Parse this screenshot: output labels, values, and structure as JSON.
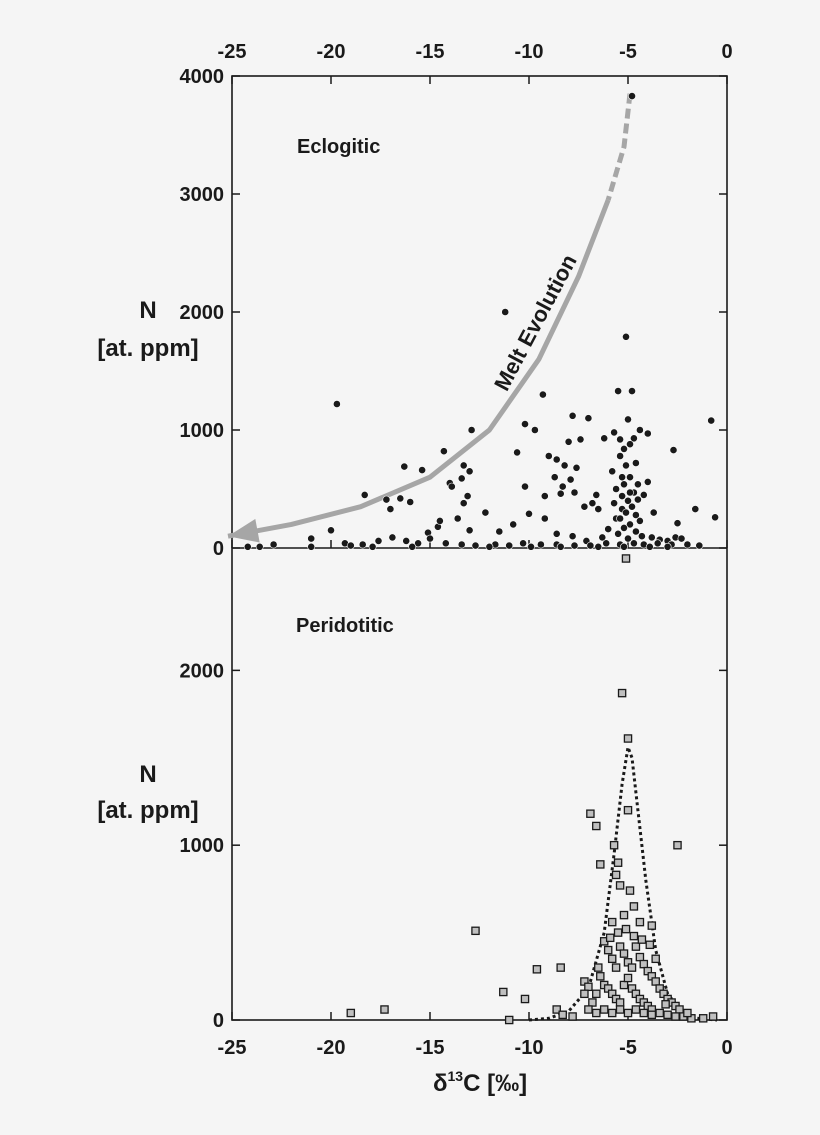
{
  "chart_data": [
    {
      "type": "scatter",
      "panel": "Eclogitic",
      "label": "Eclogitic",
      "xlim": [
        -25,
        0
      ],
      "ylim": [
        0,
        4000
      ],
      "x_ticks": [
        "-25",
        "-20",
        "-15",
        "-10",
        "-5",
        "0"
      ],
      "y_ticks": [
        "0",
        "1000",
        "2000",
        "3000",
        "4000"
      ],
      "ylabel_line1": "N",
      "ylabel_line2": "[at. ppm]",
      "annotation": "Melt Evolution",
      "marker": "filled-circle",
      "marker_color": "#1a1a1a",
      "arrow_color": "#a6a6a6",
      "arrow_path": [
        [
          -4.9,
          3850
        ],
        [
          -5.2,
          3400
        ],
        [
          -6.0,
          2950
        ],
        [
          -7.5,
          2300
        ],
        [
          -9.5,
          1600
        ],
        [
          -12.0,
          1000
        ],
        [
          -15.0,
          600
        ],
        [
          -18.5,
          350
        ],
        [
          -22.0,
          200
        ],
        [
          -25.2,
          100
        ]
      ],
      "points": [
        [
          -4.8,
          3830
        ],
        [
          -11.2,
          2000
        ],
        [
          -19.7,
          1220
        ],
        [
          -5.1,
          1790
        ],
        [
          -5.5,
          1330
        ],
        [
          -4.8,
          1330
        ],
        [
          -9.3,
          1300
        ],
        [
          -0.8,
          1080
        ],
        [
          -7.8,
          1120
        ],
        [
          -7.0,
          1100
        ],
        [
          -5.0,
          1090
        ],
        [
          -4.4,
          1000
        ],
        [
          -4.0,
          970
        ],
        [
          -5.7,
          980
        ],
        [
          -5.4,
          920
        ],
        [
          -6.2,
          930
        ],
        [
          -4.7,
          930
        ],
        [
          -4.9,
          880
        ],
        [
          -5.2,
          840
        ],
        [
          -2.7,
          830
        ],
        [
          -7.4,
          920
        ],
        [
          -8.0,
          900
        ],
        [
          -9.7,
          1000
        ],
        [
          -10.2,
          1050
        ],
        [
          -10.6,
          810
        ],
        [
          -9.0,
          780
        ],
        [
          -8.6,
          750
        ],
        [
          -8.2,
          700
        ],
        [
          -7.6,
          680
        ],
        [
          -8.7,
          600
        ],
        [
          -7.9,
          580
        ],
        [
          -8.3,
          520
        ],
        [
          -7.7,
          470
        ],
        [
          -8.4,
          460
        ],
        [
          -9.2,
          440
        ],
        [
          -10.2,
          520
        ],
        [
          -12.9,
          1000
        ],
        [
          -14.3,
          820
        ],
        [
          -13.3,
          700
        ],
        [
          -13.0,
          650
        ],
        [
          -16.3,
          690
        ],
        [
          -15.4,
          660
        ],
        [
          -13.4,
          590
        ],
        [
          -14.0,
          550
        ],
        [
          -13.9,
          520
        ],
        [
          -13.1,
          440
        ],
        [
          -13.3,
          380
        ],
        [
          -18.3,
          450
        ],
        [
          -17.2,
          410
        ],
        [
          -16.5,
          420
        ],
        [
          -16.0,
          390
        ],
        [
          -17.0,
          330
        ],
        [
          -14.6,
          180
        ],
        [
          -15.1,
          130
        ],
        [
          -14.5,
          230
        ],
        [
          -13.6,
          250
        ],
        [
          -13.0,
          150
        ],
        [
          -12.2,
          300
        ],
        [
          -11.5,
          140
        ],
        [
          -10.8,
          200
        ],
        [
          -10.0,
          290
        ],
        [
          -9.2,
          250
        ],
        [
          -8.6,
          120
        ],
        [
          -7.8,
          100
        ],
        [
          -7.1,
          60
        ],
        [
          -6.3,
          90
        ],
        [
          -6.0,
          160
        ],
        [
          -5.6,
          250
        ],
        [
          -5.3,
          330
        ],
        [
          -5.0,
          400
        ],
        [
          -4.7,
          470
        ],
        [
          -4.5,
          540
        ],
        [
          -5.3,
          600
        ],
        [
          -5.8,
          650
        ],
        [
          -5.1,
          700
        ],
        [
          -4.6,
          720
        ],
        [
          -5.4,
          780
        ],
        [
          -4.9,
          600
        ],
        [
          -5.2,
          540
        ],
        [
          -5.6,
          500
        ],
        [
          -4.9,
          470
        ],
        [
          -5.3,
          440
        ],
        [
          -4.5,
          410
        ],
        [
          -5.7,
          380
        ],
        [
          -4.8,
          350
        ],
        [
          -5.1,
          300
        ],
        [
          -4.6,
          280
        ],
        [
          -5.4,
          250
        ],
        [
          -4.4,
          230
        ],
        [
          -4.9,
          200
        ],
        [
          -5.2,
          170
        ],
        [
          -4.6,
          140
        ],
        [
          -5.5,
          120
        ],
        [
          -4.3,
          100
        ],
        [
          -5.0,
          80
        ],
        [
          -3.8,
          90
        ],
        [
          -3.4,
          70
        ],
        [
          -3.0,
          60
        ],
        [
          -2.6,
          90
        ],
        [
          -2.3,
          80
        ],
        [
          -1.6,
          330
        ],
        [
          -0.6,
          260
        ],
        [
          -2.5,
          210
        ],
        [
          -3.7,
          300
        ],
        [
          -4.0,
          560
        ],
        [
          -4.2,
          450
        ],
        [
          -6.6,
          450
        ],
        [
          -6.8,
          380
        ],
        [
          -7.2,
          350
        ],
        [
          -6.5,
          330
        ],
        [
          -20.0,
          150
        ],
        [
          -21.0,
          80
        ],
        [
          -19.3,
          40
        ],
        [
          -18.4,
          30
        ],
        [
          -17.6,
          60
        ],
        [
          -16.9,
          90
        ],
        [
          -16.2,
          60
        ],
        [
          -15.6,
          40
        ],
        [
          -15.0,
          80
        ],
        [
          -14.2,
          40
        ],
        [
          -13.4,
          30
        ],
        [
          -12.7,
          20
        ],
        [
          -11.7,
          30
        ],
        [
          -11.0,
          20
        ],
        [
          -10.3,
          40
        ],
        [
          -9.4,
          30
        ],
        [
          -8.6,
          30
        ],
        [
          -7.7,
          20
        ],
        [
          -6.9,
          20
        ],
        [
          -6.1,
          40
        ],
        [
          -5.4,
          30
        ],
        [
          -4.7,
          40
        ],
        [
          -4.2,
          30
        ],
        [
          -3.5,
          40
        ],
        [
          -2.8,
          30
        ],
        [
          -2.0,
          30
        ],
        [
          -1.4,
          20
        ],
        [
          -22.9,
          30
        ],
        [
          -23.6,
          10
        ],
        [
          -24.2,
          10
        ],
        [
          -21.0,
          10
        ],
        [
          -19.0,
          20
        ],
        [
          -17.9,
          10
        ],
        [
          -15.9,
          10
        ],
        [
          -12.0,
          10
        ],
        [
          -9.9,
          10
        ],
        [
          -8.4,
          10
        ],
        [
          -6.5,
          10
        ],
        [
          -5.2,
          10
        ],
        [
          -3.9,
          10
        ],
        [
          -3.0,
          10
        ]
      ]
    },
    {
      "type": "scatter",
      "panel": "Peridotitic",
      "label": "Peridotitic",
      "xlim": [
        -25,
        0
      ],
      "ylim": [
        0,
        2700
      ],
      "x_ticks": [
        "-25",
        "-20",
        "-15",
        "-10",
        "-5",
        "0"
      ],
      "y_ticks": [
        "0",
        "1000",
        "2000"
      ],
      "ylabel_line1": "N",
      "ylabel_line2": "[at. ppm]",
      "xlabel": "δ13C  [‰]",
      "xlabel_main": "δ",
      "xlabel_sup": "13",
      "xlabel_rest": "C  [‰]",
      "marker": "square",
      "marker_fill": "#bfbfbf",
      "marker_stroke": "#1a1a1a",
      "fit_curve": "dotted",
      "fit_curve_points": [
        [
          -10.0,
          0
        ],
        [
          -9.0,
          10
        ],
        [
          -8.0,
          50
        ],
        [
          -7.0,
          180
        ],
        [
          -6.2,
          500
        ],
        [
          -5.7,
          950
        ],
        [
          -5.3,
          1350
        ],
        [
          -5.0,
          1560
        ],
        [
          -4.8,
          1500
        ],
        [
          -4.5,
          1200
        ],
        [
          -4.1,
          800
        ],
        [
          -3.6,
          400
        ],
        [
          -3.0,
          150
        ],
        [
          -2.3,
          50
        ],
        [
          -1.5,
          10
        ],
        [
          -0.5,
          0
        ]
      ],
      "points": [
        [
          -5.1,
          2640
        ],
        [
          -5.3,
          1870
        ],
        [
          -5.0,
          1610
        ],
        [
          -6.9,
          1180
        ],
        [
          -6.6,
          1110
        ],
        [
          -5.0,
          1200
        ],
        [
          -5.7,
          1000
        ],
        [
          -5.5,
          900
        ],
        [
          -6.4,
          890
        ],
        [
          -2.5,
          1000
        ],
        [
          -5.6,
          830
        ],
        [
          -12.7,
          510
        ],
        [
          -5.4,
          770
        ],
        [
          -4.9,
          740
        ],
        [
          -4.7,
          650
        ],
        [
          -5.2,
          600
        ],
        [
          -5.8,
          560
        ],
        [
          -4.4,
          560
        ],
        [
          -3.8,
          540
        ],
        [
          -9.6,
          290
        ],
        [
          -8.4,
          300
        ],
        [
          -7.2,
          220
        ],
        [
          -7.0,
          190
        ],
        [
          -11.3,
          160
        ],
        [
          -10.2,
          120
        ],
        [
          -8.6,
          60
        ],
        [
          -8.3,
          30
        ],
        [
          -7.8,
          20
        ],
        [
          -19.0,
          40
        ],
        [
          -17.3,
          60
        ],
        [
          -11.0,
          0
        ],
        [
          -6.2,
          450
        ],
        [
          -6.0,
          400
        ],
        [
          -5.8,
          350
        ],
        [
          -5.6,
          300
        ],
        [
          -5.4,
          420
        ],
        [
          -5.2,
          380
        ],
        [
          -5.0,
          330
        ],
        [
          -4.8,
          300
        ],
        [
          -4.6,
          420
        ],
        [
          -4.4,
          360
        ],
        [
          -4.2,
          320
        ],
        [
          -4.0,
          280
        ],
        [
          -3.8,
          250
        ],
        [
          -3.6,
          220
        ],
        [
          -3.4,
          180
        ],
        [
          -3.2,
          150
        ],
        [
          -3.0,
          120
        ],
        [
          -2.8,
          100
        ],
        [
          -2.6,
          80
        ],
        [
          -2.4,
          60
        ],
        [
          -6.4,
          250
        ],
        [
          -6.2,
          200
        ],
        [
          -6.0,
          180
        ],
        [
          -5.8,
          150
        ],
        [
          -5.6,
          120
        ],
        [
          -5.4,
          100
        ],
        [
          -5.2,
          200
        ],
        [
          -5.0,
          240
        ],
        [
          -4.8,
          180
        ],
        [
          -4.6,
          150
        ],
        [
          -4.4,
          120
        ],
        [
          -4.2,
          100
        ],
        [
          -4.0,
          80
        ],
        [
          -3.8,
          60
        ],
        [
          -6.6,
          150
        ],
        [
          -6.8,
          100
        ],
        [
          -7.0,
          60
        ],
        [
          -6.6,
          40
        ],
        [
          -6.2,
          60
        ],
        [
          -5.8,
          40
        ],
        [
          -5.4,
          60
        ],
        [
          -5.0,
          40
        ],
        [
          -4.6,
          60
        ],
        [
          -4.2,
          40
        ],
        [
          -3.8,
          30
        ],
        [
          -3.4,
          40
        ],
        [
          -3.0,
          30
        ],
        [
          -2.6,
          20
        ],
        [
          -2.2,
          20
        ],
        [
          -1.8,
          10
        ],
        [
          -5.5,
          500
        ],
        [
          -5.1,
          520
        ],
        [
          -4.7,
          480
        ],
        [
          -4.3,
          460
        ],
        [
          -5.9,
          470
        ],
        [
          -3.6,
          350
        ],
        [
          -3.9,
          430
        ],
        [
          -6.5,
          300
        ],
        [
          -7.2,
          150
        ],
        [
          -3.1,
          90
        ],
        [
          -2.0,
          40
        ],
        [
          -1.2,
          10
        ],
        [
          -0.7,
          20
        ]
      ]
    }
  ]
}
